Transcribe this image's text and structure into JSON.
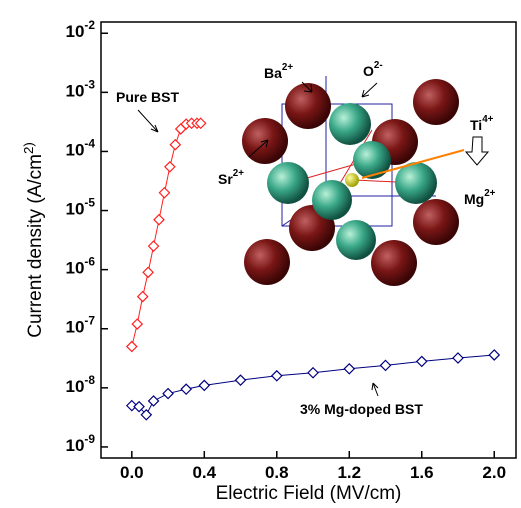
{
  "chart_data": {
    "type": "scatter",
    "x_label": "Electric Field (MV/cm)",
    "y_label": "Current density (A/cm^2)",
    "log_y": true,
    "xlim": [
      -0.17,
      2.12
    ],
    "xticks": [
      {
        "value": 0,
        "label": "0.0"
      },
      0.4,
      0.8,
      1.2,
      1.6,
      {
        "value": 2,
        "label": "2.0"
      }
    ],
    "ylim": [
      6.5e-10,
      0.0155
    ],
    "yticks": [
      {
        "value": 1e-09,
        "label": "10^-9"
      },
      {
        "value": 1e-08,
        "label": "10^-8"
      },
      {
        "value": 1e-07,
        "label": "10^-7"
      },
      {
        "value": 1e-06,
        "label": "10^-6"
      },
      {
        "value": 1e-05,
        "label": "10^-5"
      },
      {
        "value": 0.0001,
        "label": "10^-4"
      },
      {
        "value": 0.001,
        "label": "10^-3"
      },
      {
        "value": 0.01,
        "label": "10^-2"
      }
    ],
    "series": [
      {
        "name": "Pure BST",
        "color": "#ff2020",
        "x": [
          0,
          0.03,
          0.06,
          0.09,
          0.12,
          0.15,
          0.18,
          0.21,
          0.24,
          0.27,
          0.3,
          0.33,
          0.36,
          0.38
        ],
        "values": [
          5e-08,
          1.2e-07,
          3.5e-07,
          9e-07,
          2.5e-06,
          7e-06,
          2e-05,
          5.5e-05,
          0.00013,
          0.00024,
          0.00029,
          0.0003,
          0.0003,
          0.0003
        ]
      },
      {
        "name": "3% Mg-doped BST",
        "color": "#00007f",
        "x": [
          0,
          0.04,
          0.08,
          0.12,
          0.2,
          0.3,
          0.4,
          0.6,
          0.8,
          1.0,
          1.2,
          1.4,
          1.6,
          1.8,
          2.0
        ],
        "values": [
          5e-09,
          4.8e-09,
          3.5e-09,
          6e-09,
          8e-09,
          9.5e-09,
          1.1e-08,
          1.35e-08,
          1.6e-08,
          1.8e-08,
          2.1e-08,
          2.4e-08,
          2.8e-08,
          3.2e-08,
          3.6e-08
        ]
      }
    ],
    "inset_labels": [
      "Ba^2+",
      "O^2-",
      "Ti^4+",
      "Sr^2+",
      "Mg^2+"
    ]
  }
}
